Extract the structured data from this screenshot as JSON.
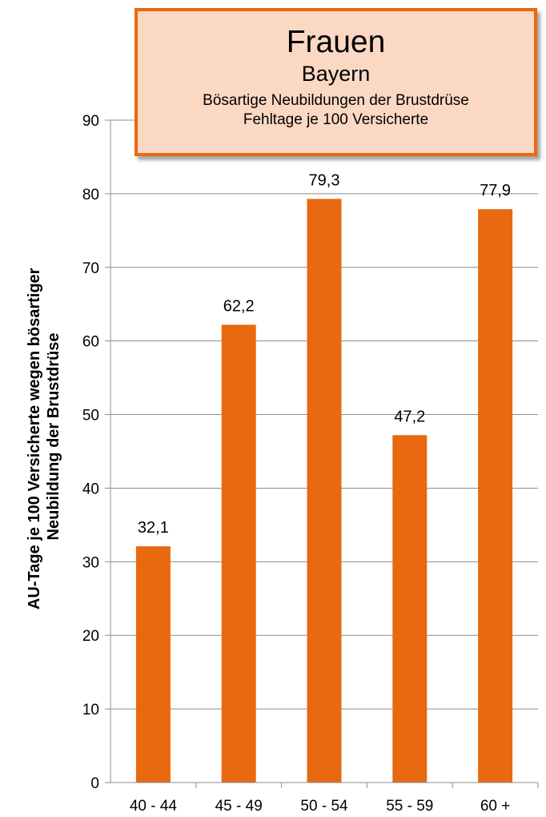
{
  "chart_data": {
    "type": "bar",
    "title": "Frauen",
    "subtitles": [
      "Bayern",
      "Bösartige Neubildungen der Brustdrüse",
      "Fehltage je 100 Versicherte"
    ],
    "ylabel_lines": [
      "AU-Tage je 100 Versicherte wegen bösartiger",
      "Neubildung der Brustdrüse"
    ],
    "xlabel": "",
    "categories": [
      "40 - 44",
      "45 - 49",
      "50 - 54",
      "55 - 59",
      "60 +"
    ],
    "values": [
      32.1,
      62.2,
      79.3,
      47.2,
      77.9
    ],
    "value_labels": [
      "32,1",
      "62,2",
      "79,3",
      "47,2",
      "77,9"
    ],
    "ylim": [
      0,
      90
    ],
    "yticks": [
      0,
      10,
      20,
      30,
      40,
      50,
      60,
      70,
      80,
      90
    ],
    "grid": true,
    "legend": "none",
    "bar_color": "#e8690f",
    "title_box_fill": "#fbd8c4",
    "title_box_border": "#e8690f"
  }
}
